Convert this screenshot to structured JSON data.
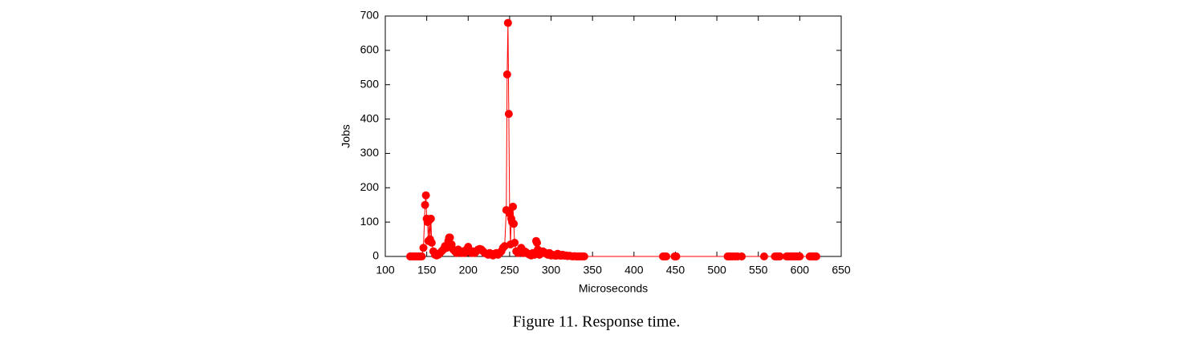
{
  "chart_data": {
    "type": "line",
    "xlabel": "Microseconds",
    "ylabel": "Jobs",
    "caption": "Figure 11. Response time.",
    "color": "#ff0000",
    "x": [
      130,
      132,
      134,
      136,
      138,
      140,
      142,
      144,
      146,
      148,
      149,
      150,
      151,
      152,
      153,
      154,
      155,
      156,
      158,
      160,
      162,
      164,
      166,
      168,
      170,
      172,
      174,
      176,
      177,
      178,
      180,
      182,
      184,
      186,
      188,
      190,
      192,
      194,
      196,
      198,
      200,
      202,
      204,
      206,
      208,
      210,
      212,
      214,
      216,
      218,
      220,
      222,
      224,
      226,
      228,
      230,
      232,
      234,
      236,
      238,
      240,
      242,
      244,
      246,
      247,
      248,
      249,
      250,
      251,
      252,
      253,
      254,
      255,
      256,
      258,
      260,
      262,
      264,
      266,
      268,
      270,
      272,
      274,
      276,
      278,
      280,
      282,
      283,
      284,
      286,
      288,
      290,
      292,
      294,
      296,
      298,
      300,
      302,
      304,
      306,
      308,
      310,
      312,
      314,
      316,
      318,
      320,
      322,
      324,
      326,
      328,
      330,
      332,
      334,
      336,
      338,
      340,
      435,
      437,
      439,
      449,
      451,
      513,
      515,
      517,
      519,
      522,
      525,
      530,
      557,
      570,
      572,
      574,
      576,
      584,
      586,
      588,
      590,
      592,
      594,
      596,
      598,
      600,
      612,
      614,
      616,
      618,
      620
    ],
    "values": [
      0,
      0,
      0,
      0,
      0,
      0,
      0,
      0,
      25,
      150,
      178,
      110,
      100,
      45,
      105,
      50,
      110,
      40,
      15,
      5,
      3,
      5,
      10,
      15,
      20,
      30,
      25,
      45,
      55,
      55,
      35,
      20,
      15,
      10,
      20,
      15,
      10,
      15,
      10,
      20,
      28,
      15,
      10,
      15,
      10,
      15,
      20,
      22,
      20,
      15,
      10,
      8,
      5,
      10,
      5,
      3,
      8,
      10,
      5,
      10,
      15,
      25,
      30,
      135,
      530,
      680,
      415,
      125,
      35,
      110,
      100,
      145,
      95,
      40,
      15,
      10,
      15,
      25,
      10,
      15,
      12,
      8,
      5,
      3,
      10,
      5,
      45,
      40,
      20,
      5,
      10,
      15,
      12,
      8,
      5,
      10,
      3,
      5,
      3,
      2,
      8,
      3,
      2,
      5,
      2,
      3,
      1,
      2,
      1,
      0,
      1,
      0,
      0,
      0,
      0,
      0,
      0,
      0,
      0,
      0,
      0,
      0,
      0,
      0,
      0,
      0,
      0,
      0,
      0,
      0,
      0,
      0,
      0,
      0,
      0,
      0,
      0,
      0,
      0,
      0,
      0,
      0,
      0,
      0,
      0,
      0,
      0,
      0
    ],
    "xlim": [
      100,
      650
    ],
    "xticks": [
      100,
      150,
      200,
      250,
      300,
      350,
      400,
      450,
      500,
      550,
      600,
      650
    ],
    "ylim": [
      0,
      700
    ],
    "yticks": [
      0,
      100,
      200,
      300,
      400,
      500,
      600,
      700
    ]
  }
}
